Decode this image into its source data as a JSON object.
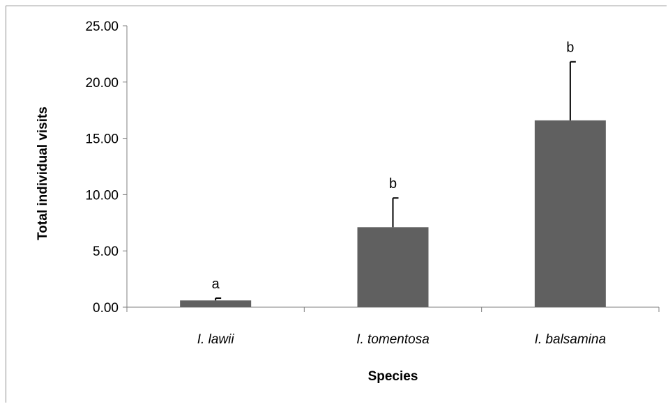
{
  "chart_data": {
    "type": "bar",
    "title": "",
    "xlabel": "Species",
    "ylabel": "Total individual visits",
    "ylim": [
      0,
      25
    ],
    "yticks": [
      "0.00",
      "5.00",
      "10.00",
      "15.00",
      "20.00",
      "25.00"
    ],
    "categories": [
      "I. lawii",
      "I. tomentosa",
      "I. balsamina"
    ],
    "values": [
      0.6,
      7.1,
      16.6
    ],
    "error_upper": [
      0.2,
      2.6,
      5.2
    ],
    "significance_letters": [
      "a",
      "b",
      "b"
    ],
    "bar_color": "#606060",
    "grid": false,
    "legend": "none"
  }
}
